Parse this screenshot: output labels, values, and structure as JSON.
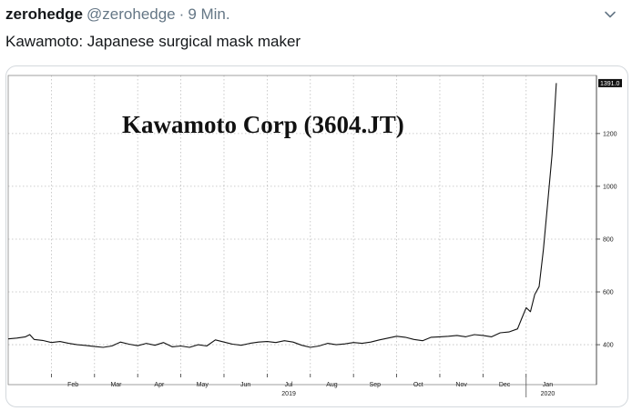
{
  "tweet": {
    "display_name": "zerohedge",
    "handle": "@zerohedge",
    "separator": "·",
    "time": "9 Min.",
    "text": "Kawamoto: Japanese surgical mask maker"
  },
  "icons": {
    "menu": "chevron-down-icon"
  },
  "colors": {
    "line": "#111111",
    "grid": "#bdbdbd",
    "label_bg": "#111111"
  },
  "chart_data": {
    "type": "line",
    "title": "Kawamoto Corp (3604.JT)",
    "ylim": [
      290,
      1420
    ],
    "yticks": [
      400,
      600,
      800,
      1000,
      1200
    ],
    "ytick_labels": [
      "400",
      "600",
      "800",
      "1000",
      "1200"
    ],
    "last_value_label": "1391.0",
    "xlim": [
      0,
      13.25
    ],
    "xticks": [
      {
        "label": "Feb",
        "x": 1
      },
      {
        "label": "Mar",
        "x": 2
      },
      {
        "label": "Apr",
        "x": 3
      },
      {
        "label": "May",
        "x": 4
      },
      {
        "label": "Jun",
        "x": 5
      },
      {
        "label": "Jul",
        "x": 6
      },
      {
        "label": "Aug",
        "x": 7
      },
      {
        "label": "Sep",
        "x": 8
      },
      {
        "label": "Oct",
        "x": 9
      },
      {
        "label": "Nov",
        "x": 10
      },
      {
        "label": "Dec",
        "x": 11
      },
      {
        "label": "Jan",
        "x": 12
      }
    ],
    "year_labels": [
      {
        "label": "2019",
        "x": 6
      },
      {
        "label": "2020",
        "x": 12
      }
    ],
    "grid": true,
    "series": [
      {
        "values": [
          [
            0.0,
            422
          ],
          [
            0.2,
            425
          ],
          [
            0.4,
            430
          ],
          [
            0.5,
            438
          ],
          [
            0.6,
            420
          ],
          [
            0.8,
            416
          ],
          [
            1.0,
            408
          ],
          [
            1.2,
            412
          ],
          [
            1.4,
            405
          ],
          [
            1.6,
            400
          ],
          [
            1.8,
            397
          ],
          [
            2.0,
            393
          ],
          [
            2.2,
            390
          ],
          [
            2.4,
            395
          ],
          [
            2.6,
            410
          ],
          [
            2.8,
            402
          ],
          [
            3.0,
            396
          ],
          [
            3.2,
            405
          ],
          [
            3.4,
            398
          ],
          [
            3.6,
            408
          ],
          [
            3.8,
            392
          ],
          [
            4.0,
            395
          ],
          [
            4.2,
            390
          ],
          [
            4.4,
            400
          ],
          [
            4.6,
            395
          ],
          [
            4.8,
            418
          ],
          [
            5.0,
            410
          ],
          [
            5.2,
            402
          ],
          [
            5.4,
            398
          ],
          [
            5.6,
            405
          ],
          [
            5.8,
            410
          ],
          [
            6.0,
            412
          ],
          [
            6.2,
            408
          ],
          [
            6.4,
            415
          ],
          [
            6.6,
            410
          ],
          [
            6.8,
            398
          ],
          [
            7.0,
            390
          ],
          [
            7.2,
            395
          ],
          [
            7.4,
            405
          ],
          [
            7.6,
            400
          ],
          [
            7.8,
            403
          ],
          [
            8.0,
            408
          ],
          [
            8.2,
            405
          ],
          [
            8.4,
            410
          ],
          [
            8.6,
            418
          ],
          [
            8.8,
            425
          ],
          [
            9.0,
            432
          ],
          [
            9.2,
            428
          ],
          [
            9.4,
            420
          ],
          [
            9.6,
            415
          ],
          [
            9.8,
            428
          ],
          [
            10.0,
            430
          ],
          [
            10.2,
            432
          ],
          [
            10.4,
            435
          ],
          [
            10.6,
            430
          ],
          [
            10.8,
            438
          ],
          [
            11.0,
            435
          ],
          [
            11.2,
            430
          ],
          [
            11.4,
            445
          ],
          [
            11.6,
            448
          ],
          [
            11.8,
            460
          ],
          [
            11.9,
            500
          ],
          [
            12.0,
            540
          ],
          [
            12.1,
            525
          ],
          [
            12.2,
            590
          ],
          [
            12.3,
            620
          ],
          [
            12.4,
            760
          ],
          [
            12.5,
            940
          ],
          [
            12.6,
            1120
          ],
          [
            12.7,
            1391
          ]
        ]
      }
    ]
  }
}
